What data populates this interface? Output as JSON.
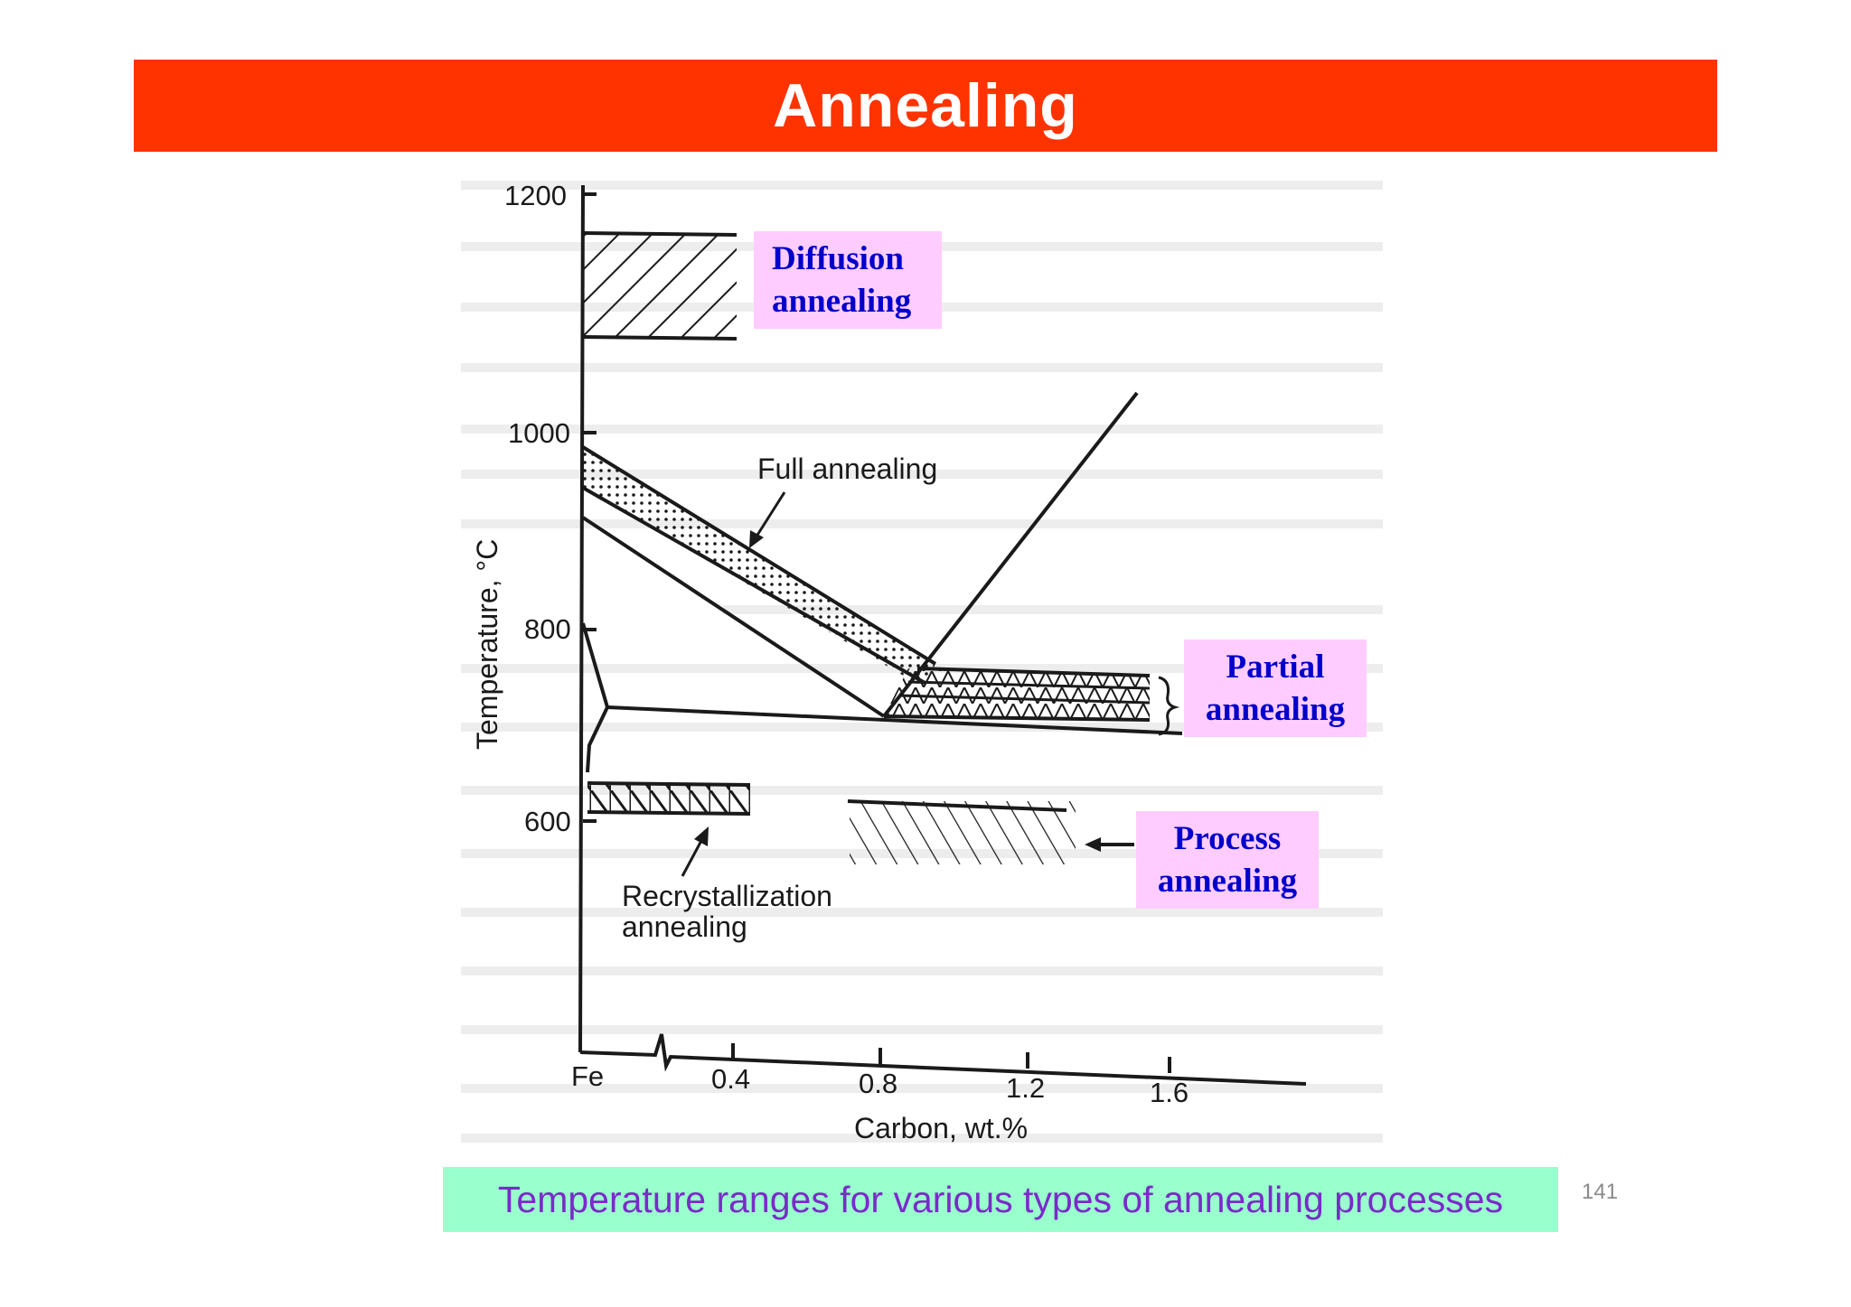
{
  "slide": {
    "title": "Annealing",
    "page_number": "141",
    "caption": "Temperature ranges for various types of annealing processes"
  },
  "colors": {
    "title_bar": "#ff3300",
    "title_text": "#ffffff",
    "label_bg": "#ffccff",
    "label_text": "#0000cc",
    "caption_bg": "#99ffcc",
    "caption_text": "#7a2bc9"
  },
  "labels": {
    "diffusion": [
      "Diffusion",
      "annealing"
    ],
    "partial": [
      "Partial",
      "annealing"
    ],
    "process": [
      "Process",
      "annealing"
    ]
  },
  "diagram": {
    "y_axis_label": "Temperature, °C",
    "x_axis_label": "Carbon, wt.%",
    "y_ticks": [
      "1200",
      "1000",
      "800",
      "600"
    ],
    "x_ticks": [
      "Fe",
      "0.4",
      "0.8",
      "1.2",
      "1.6"
    ],
    "full_annealing_label": "Full annealing",
    "recrystallization_label": [
      "Recrystallization",
      "annealing"
    ]
  }
}
